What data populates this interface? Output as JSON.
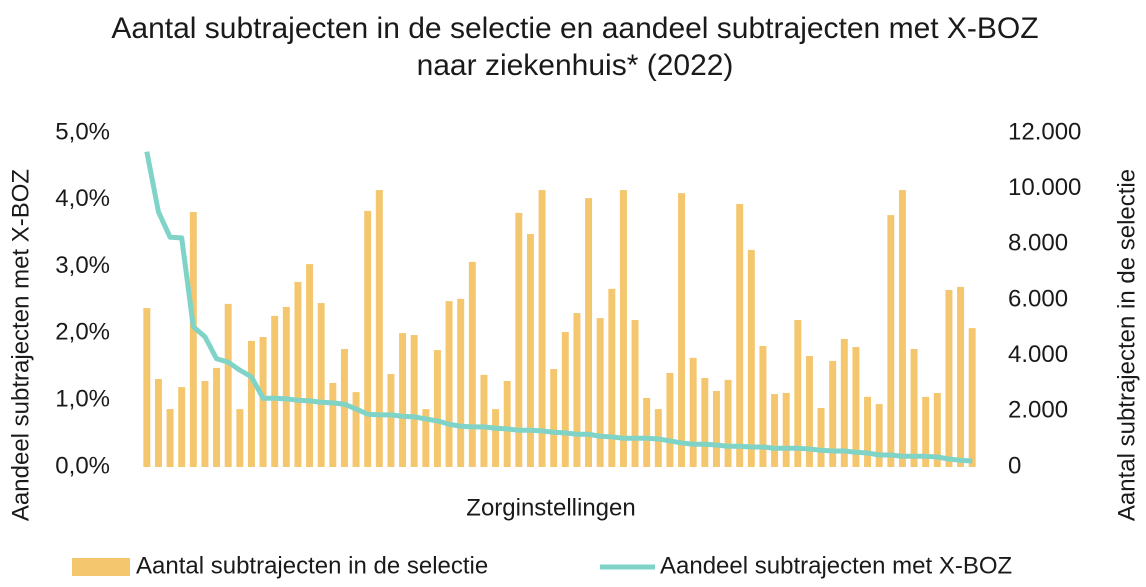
{
  "chart_data": {
    "type": "bar-line",
    "title": "Aantal subtrajecten in de selectie en aandeel subtrajecten met X-BOZ naar ziekenhuis* (2022)",
    "xlabel": "Zorginstellingen",
    "ylabel": "Aandeel subtrajecten met X-BOZ",
    "y2label": "Aantal subtrajecten in de selectie",
    "legend": "bottom",
    "ylim": [
      0,
      5
    ],
    "yticks": [
      {
        "value": 0,
        "label": "0,0%"
      },
      {
        "value": 1,
        "label": "1,0%"
      },
      {
        "value": 2,
        "label": "2,0%"
      },
      {
        "value": 3,
        "label": "3,0%"
      },
      {
        "value": 4,
        "label": "4,0%"
      },
      {
        "value": 5,
        "label": "5,0%"
      }
    ],
    "y2lim": [
      0,
      12000
    ],
    "y2ticks": [
      0,
      {
        "value": 2000,
        "label": "2.000"
      },
      {
        "value": 4000,
        "label": "4.000"
      },
      {
        "value": 6000,
        "label": "6.000"
      },
      {
        "value": 8000,
        "label": "8.000"
      },
      {
        "value": 10000,
        "label": "10.000"
      },
      {
        "value": 12000,
        "label": "12.000"
      }
    ],
    "series": [
      {
        "name": "Aantal subtrajecten in de selectie",
        "type": "bar",
        "axis": "y2",
        "color": "#f4c76f",
        "values": [
          5710,
          3160,
          2080,
          2870,
          9160,
          3090,
          3560,
          5860,
          2080,
          4530,
          4670,
          5430,
          5750,
          6650,
          7290,
          5890,
          3020,
          4240,
          2690,
          9200,
          9950,
          3340,
          4810,
          4740,
          2080,
          4200,
          5960,
          6040,
          7370,
          3310,
          2080,
          3090,
          9130,
          8370,
          9950,
          3520,
          4850,
          5530,
          9660,
          5350,
          6400,
          9950,
          5280,
          2480,
          2080,
          3380,
          9840,
          3920,
          3200,
          2730,
          3130,
          9450,
          7800,
          4350,
          2620,
          2660,
          5280,
          3990,
          2120,
          3810,
          4600,
          4310,
          2520,
          2260,
          9050,
          9950,
          4240,
          2520,
          2660,
          6360,
          6470,
          4990
        ]
      },
      {
        "name": "Aandeel subtrajecten met X-BOZ",
        "type": "line",
        "axis": "y",
        "color": "#7fd3c7",
        "values": [
          4.72,
          3.82,
          3.44,
          3.43,
          2.1,
          1.95,
          1.62,
          1.57,
          1.45,
          1.35,
          1.03,
          1.03,
          1.02,
          1.0,
          0.99,
          0.97,
          0.96,
          0.94,
          0.87,
          0.79,
          0.78,
          0.78,
          0.76,
          0.75,
          0.72,
          0.69,
          0.64,
          0.61,
          0.6,
          0.6,
          0.58,
          0.57,
          0.55,
          0.55,
          0.54,
          0.52,
          0.51,
          0.49,
          0.49,
          0.46,
          0.45,
          0.43,
          0.43,
          0.43,
          0.42,
          0.39,
          0.36,
          0.34,
          0.34,
          0.33,
          0.31,
          0.31,
          0.3,
          0.3,
          0.28,
          0.28,
          0.28,
          0.27,
          0.25,
          0.24,
          0.24,
          0.22,
          0.21,
          0.18,
          0.18,
          0.16,
          0.16,
          0.16,
          0.15,
          0.12,
          0.1,
          0.09
        ]
      }
    ]
  }
}
